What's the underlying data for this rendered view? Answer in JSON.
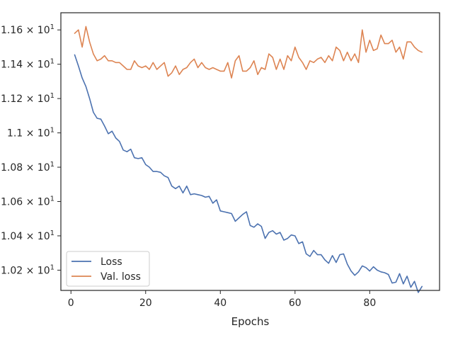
{
  "chart_data": {
    "type": "line",
    "xlabel": "Epochs",
    "ylabel": "",
    "xlim": [
      -2.7,
      98.7
    ],
    "ylim": [
      10.082,
      11.7
    ],
    "x_ticks": [
      0,
      20,
      40,
      60,
      80
    ],
    "y_ticks": [
      {
        "value": 10.2,
        "mantissa": "1.02",
        "exponent": "1"
      },
      {
        "value": 10.4,
        "mantissa": "1.04",
        "exponent": "1"
      },
      {
        "value": 10.6,
        "mantissa": "1.06",
        "exponent": "1"
      },
      {
        "value": 10.8,
        "mantissa": "1.08",
        "exponent": "1"
      },
      {
        "value": 11.0,
        "mantissa": "1.1",
        "exponent": "1"
      },
      {
        "value": 11.2,
        "mantissa": "1.12",
        "exponent": "1"
      },
      {
        "value": 11.4,
        "mantissa": "1.14",
        "exponent": "1"
      },
      {
        "value": 11.6,
        "mantissa": "1.16",
        "exponent": "1"
      }
    ],
    "grid": false,
    "legend_position": "lower-left",
    "series": [
      {
        "name": "Loss",
        "color": "#4c72b0",
        "x": [
          1,
          2,
          3,
          4,
          5,
          6,
          7,
          8,
          9,
          10,
          11,
          12,
          13,
          14,
          15,
          16,
          17,
          18,
          19,
          20,
          21,
          22,
          23,
          24,
          25,
          26,
          27,
          28,
          29,
          30,
          31,
          32,
          33,
          34,
          35,
          36,
          37,
          38,
          39,
          40,
          41,
          42,
          43,
          44,
          45,
          46,
          47,
          48,
          49,
          50,
          51,
          52,
          53,
          54,
          55,
          56,
          57,
          58,
          59,
          60,
          61,
          62,
          63,
          64,
          65,
          66,
          67,
          68,
          69,
          70,
          71,
          72,
          73,
          74,
          75,
          76,
          77,
          78,
          79,
          80,
          81,
          82,
          83,
          84,
          85,
          86,
          87,
          88,
          89,
          90,
          91,
          92,
          93,
          94
        ],
        "values": [
          11.455,
          11.39,
          11.32,
          11.27,
          11.2,
          11.12,
          11.085,
          11.08,
          11.04,
          10.995,
          11.01,
          10.97,
          10.95,
          10.9,
          10.89,
          10.905,
          10.855,
          10.85,
          10.855,
          10.815,
          10.8,
          10.775,
          10.775,
          10.77,
          10.75,
          10.74,
          10.69,
          10.675,
          10.69,
          10.65,
          10.69,
          10.64,
          10.645,
          10.64,
          10.635,
          10.625,
          10.63,
          10.59,
          10.61,
          10.545,
          10.54,
          10.535,
          10.53,
          10.485,
          10.505,
          10.525,
          10.54,
          10.46,
          10.45,
          10.47,
          10.455,
          10.385,
          10.42,
          10.43,
          10.41,
          10.42,
          10.375,
          10.385,
          10.405,
          10.4,
          10.355,
          10.365,
          10.295,
          10.28,
          10.315,
          10.29,
          10.29,
          10.26,
          10.24,
          10.285,
          10.245,
          10.29,
          10.295,
          10.235,
          10.195,
          10.17,
          10.19,
          10.225,
          10.215,
          10.195,
          10.22,
          10.2,
          10.19,
          10.185,
          10.175,
          10.125,
          10.13,
          10.18,
          10.12,
          10.165,
          10.1,
          10.135,
          10.07,
          10.105
        ]
      },
      {
        "name": "Val. loss",
        "color": "#dd8452",
        "x": [
          1,
          2,
          3,
          4,
          5,
          6,
          7,
          8,
          9,
          10,
          11,
          12,
          13,
          14,
          15,
          16,
          17,
          18,
          19,
          20,
          21,
          22,
          23,
          24,
          25,
          26,
          27,
          28,
          29,
          30,
          31,
          32,
          33,
          34,
          35,
          36,
          37,
          38,
          39,
          40,
          41,
          42,
          43,
          44,
          45,
          46,
          47,
          48,
          49,
          50,
          51,
          52,
          53,
          54,
          55,
          56,
          57,
          58,
          59,
          60,
          61,
          62,
          63,
          64,
          65,
          66,
          67,
          68,
          69,
          70,
          71,
          72,
          73,
          74,
          75,
          76,
          77,
          78,
          79,
          80,
          81,
          82,
          83,
          84,
          85,
          86,
          87,
          88,
          89,
          90,
          91,
          92,
          93,
          94
        ],
        "values": [
          11.58,
          11.6,
          11.5,
          11.62,
          11.53,
          11.46,
          11.42,
          11.43,
          11.45,
          11.42,
          11.42,
          11.41,
          11.41,
          11.39,
          11.37,
          11.37,
          11.42,
          11.39,
          11.38,
          11.39,
          11.37,
          11.41,
          11.37,
          11.39,
          11.41,
          11.33,
          11.35,
          11.39,
          11.34,
          11.37,
          11.38,
          11.41,
          11.43,
          11.38,
          11.41,
          11.38,
          11.37,
          11.38,
          11.37,
          11.36,
          11.36,
          11.41,
          11.32,
          11.42,
          11.45,
          11.36,
          11.36,
          11.38,
          11.42,
          11.34,
          11.38,
          11.37,
          11.46,
          11.44,
          11.37,
          11.43,
          11.37,
          11.45,
          11.42,
          11.5,
          11.44,
          11.41,
          11.37,
          11.42,
          11.41,
          11.43,
          11.44,
          11.41,
          11.45,
          11.42,
          11.5,
          11.48,
          11.42,
          11.47,
          11.42,
          11.46,
          11.41,
          11.6,
          11.47,
          11.54,
          11.48,
          11.49,
          11.57,
          11.52,
          11.52,
          11.54,
          11.47,
          11.5,
          11.43,
          11.53,
          11.53,
          11.5,
          11.48,
          11.47
        ]
      }
    ]
  }
}
